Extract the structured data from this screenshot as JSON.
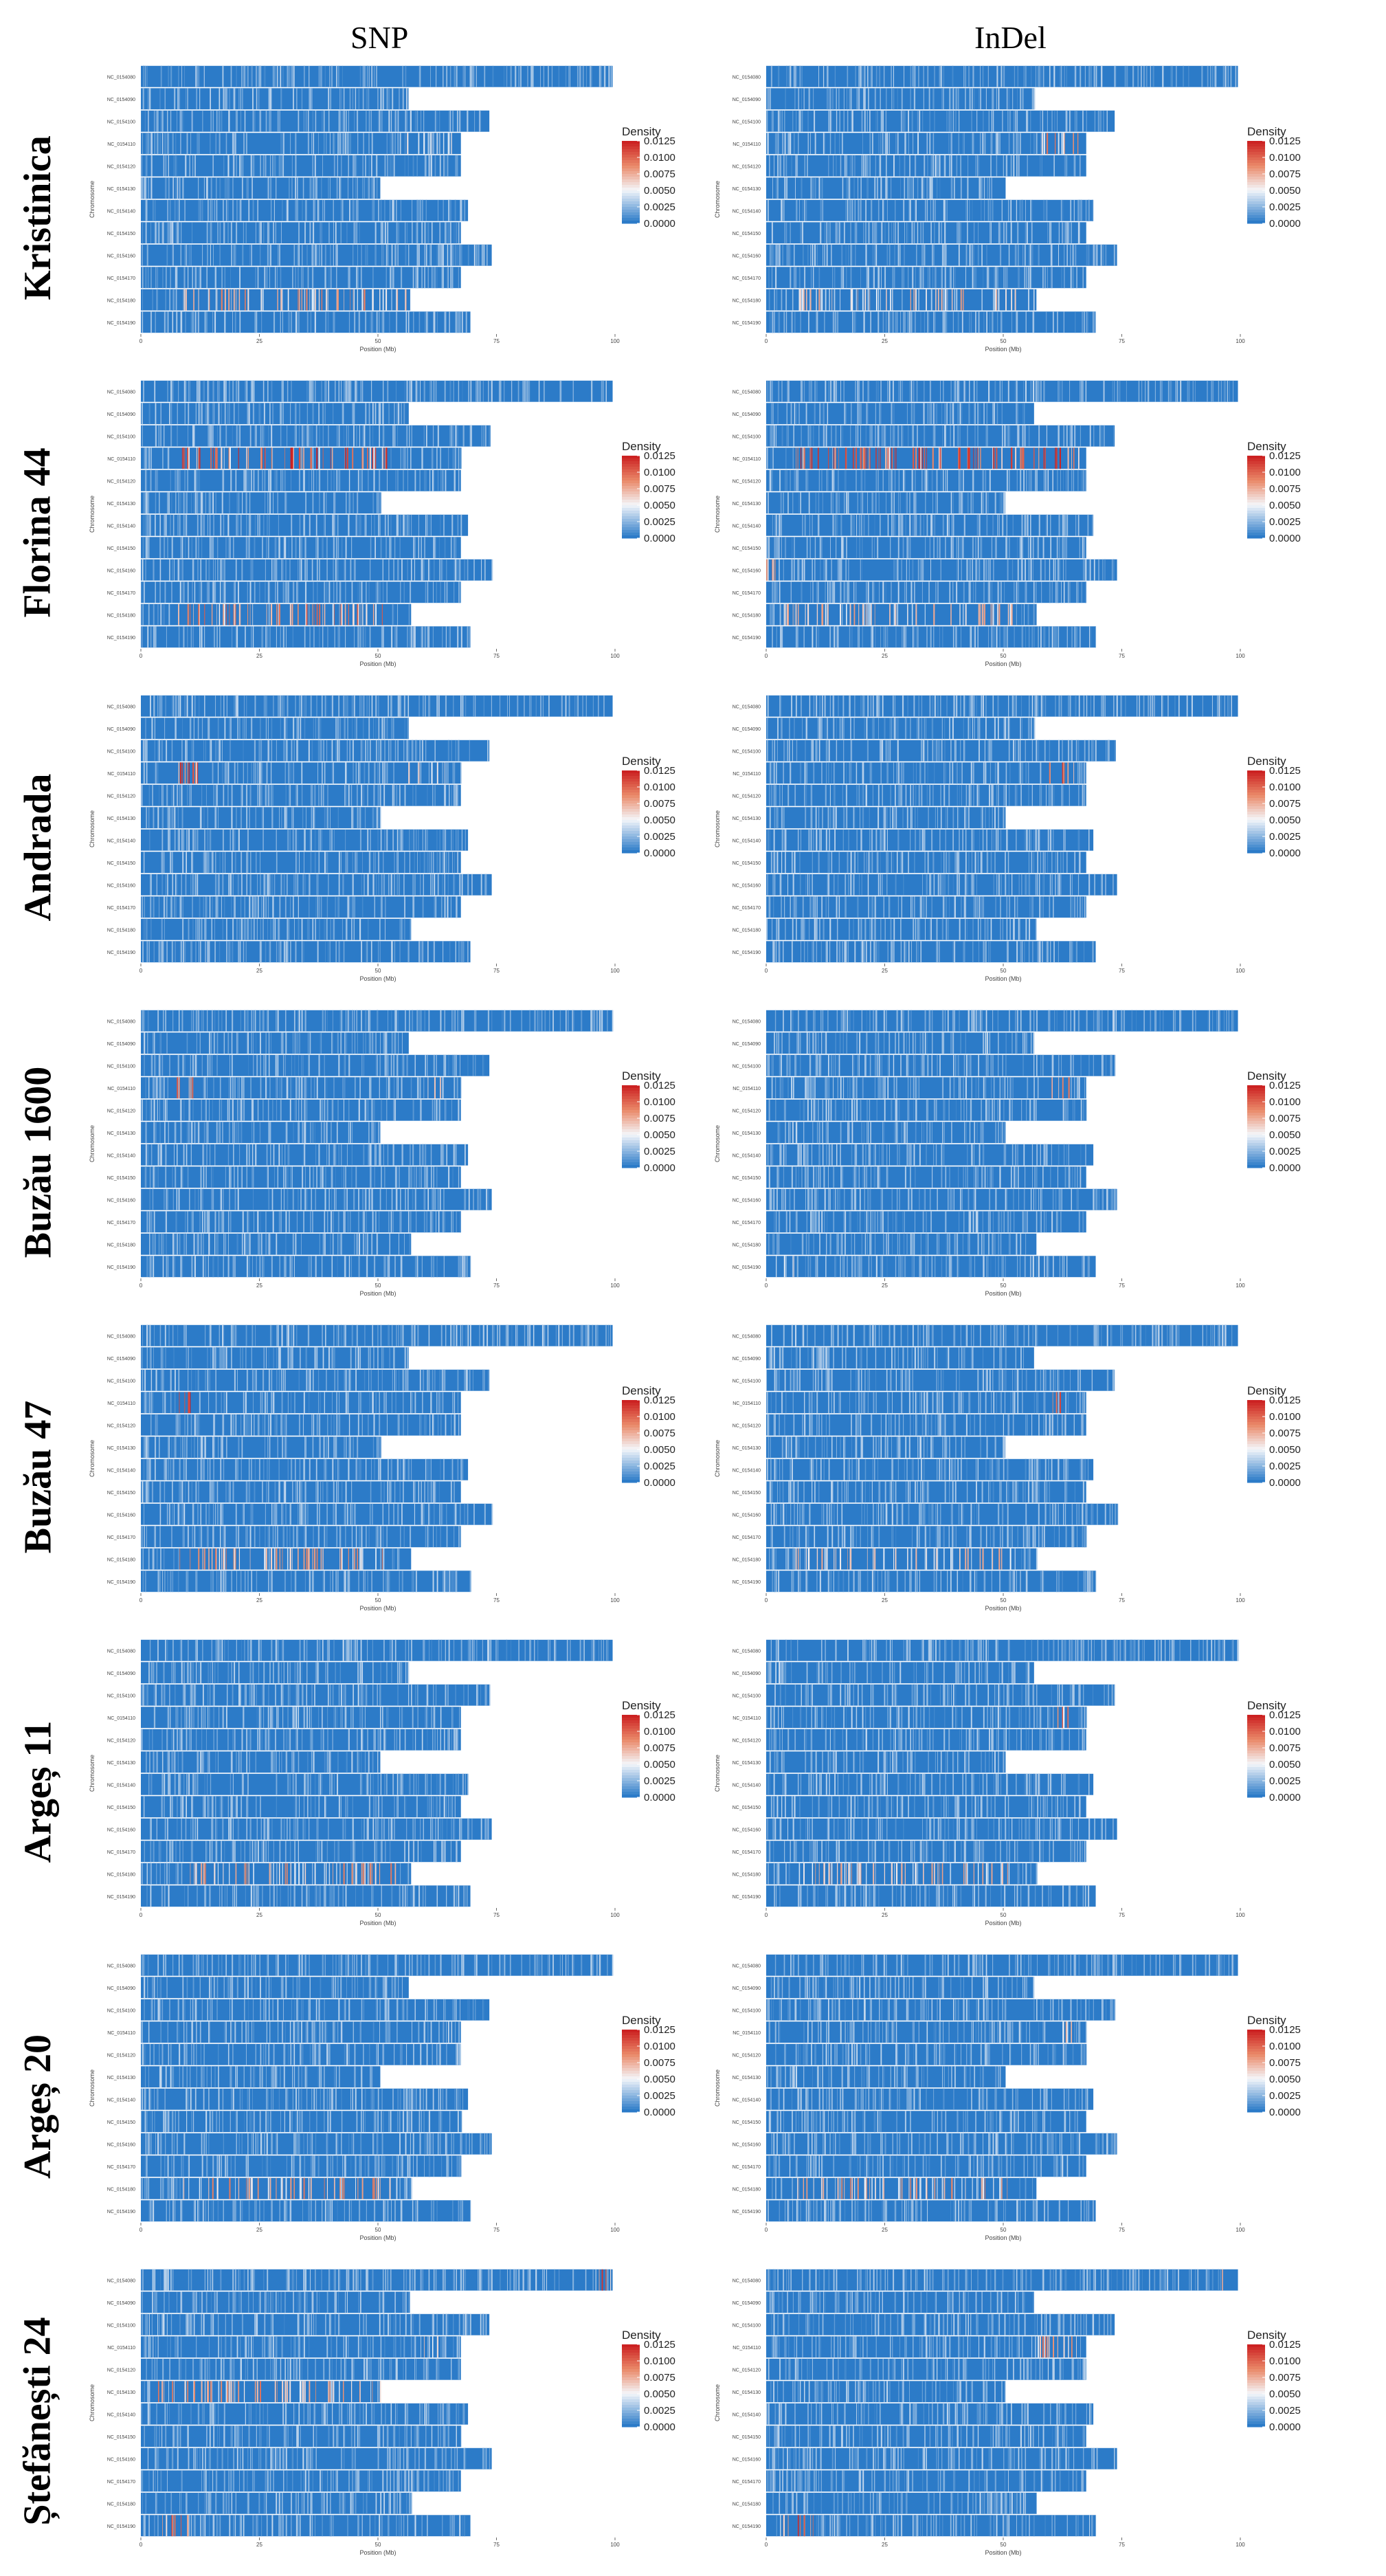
{
  "figure": {
    "column_headers": [
      "SNP",
      "InDel"
    ],
    "variety_labels": [
      "Kristinica",
      "Florina 44",
      "Andrada",
      "Buzău 1600",
      "Buzău 47",
      "Argeș 11",
      "Argeș 20",
      "Ștefănești 24"
    ]
  },
  "colors": {
    "low": "#2c7bc8",
    "mid": "#f4f6fa",
    "high": "#cc2222",
    "mid2": "#ea8a6a",
    "axis": "#444444"
  },
  "chart_data": {
    "type": "heatmap",
    "xlabel": "Position (Mb)",
    "ylabel": "Chromosome",
    "x_ticks": [
      "0",
      "25",
      "50",
      "75",
      "100"
    ],
    "xlim": [
      0,
      100
    ],
    "legend_title": "Density",
    "legend_ticks": [
      "0.0125",
      "0.0100",
      "0.0075",
      "0.0050",
      "0.0025",
      "0.0000"
    ],
    "color_range": [
      0,
      0.0125
    ],
    "chromosomes": [
      {
        "name": "NC_0154080",
        "length_mb": 99.5
      },
      {
        "name": "NC_0154090",
        "length_mb": 56.5
      },
      {
        "name": "NC_0154100",
        "length_mb": 73.5
      },
      {
        "name": "NC_0154110",
        "length_mb": 67.5
      },
      {
        "name": "NC_0154120",
        "length_mb": 67.5
      },
      {
        "name": "NC_0154130",
        "length_mb": 50.5
      },
      {
        "name": "NC_0154140",
        "length_mb": 69.0
      },
      {
        "name": "NC_0154150",
        "length_mb": 67.5
      },
      {
        "name": "NC_0154160",
        "length_mb": 74.0
      },
      {
        "name": "NC_0154170",
        "length_mb": 67.5
      },
      {
        "name": "NC_0154180",
        "length_mb": 57.0
      },
      {
        "name": "NC_0154190",
        "length_mb": 69.5
      }
    ],
    "panels": [
      {
        "variety": "Kristinica",
        "type": "SNP",
        "hotspots": [
          {
            "chr": 10,
            "from": 9,
            "to": 57,
            "level": 0.008
          },
          {
            "chr": 3,
            "from": 56,
            "to": 67,
            "level": 0.005
          }
        ]
      },
      {
        "variety": "Kristinica",
        "type": "InDel",
        "hotspots": [
          {
            "chr": 10,
            "from": 6,
            "to": 56,
            "level": 0.007
          },
          {
            "chr": 3,
            "from": 58,
            "to": 66,
            "level": 0.009
          }
        ]
      },
      {
        "variety": "Florina 44",
        "type": "SNP",
        "hotspots": [
          {
            "chr": 3,
            "from": 7,
            "to": 52,
            "level": 0.011
          },
          {
            "chr": 10,
            "from": 7,
            "to": 52,
            "level": 0.009
          }
        ]
      },
      {
        "variety": "Florina 44",
        "type": "InDel",
        "hotspots": [
          {
            "chr": 3,
            "from": 6,
            "to": 66,
            "level": 0.012
          },
          {
            "chr": 10,
            "from": 3,
            "to": 52,
            "level": 0.007
          },
          {
            "chr": 8,
            "from": 0,
            "to": 2,
            "level": 0.01
          }
        ]
      },
      {
        "variety": "Andrada",
        "type": "SNP",
        "hotspots": [
          {
            "chr": 3,
            "from": 7,
            "to": 12,
            "level": 0.012
          },
          {
            "chr": 3,
            "from": 56,
            "to": 64,
            "level": 0.006
          }
        ]
      },
      {
        "variety": "Andrada",
        "type": "InDel",
        "hotspots": [
          {
            "chr": 3,
            "from": 58,
            "to": 65,
            "level": 0.01
          },
          {
            "chr": 11,
            "from": 3,
            "to": 6,
            "level": 0.006
          }
        ]
      },
      {
        "variety": "Buzău 1600",
        "type": "SNP",
        "hotspots": [
          {
            "chr": 3,
            "from": 7,
            "to": 12,
            "level": 0.012
          },
          {
            "chr": 3,
            "from": 60,
            "to": 66,
            "level": 0.006
          }
        ]
      },
      {
        "variety": "Buzău 1600",
        "type": "InDel",
        "hotspots": [
          {
            "chr": 3,
            "from": 58,
            "to": 64,
            "level": 0.01
          },
          {
            "chr": 11,
            "from": 3,
            "to": 6,
            "level": 0.005
          }
        ]
      },
      {
        "variety": "Buzău 47",
        "type": "SNP",
        "hotspots": [
          {
            "chr": 3,
            "from": 8,
            "to": 12,
            "level": 0.011
          },
          {
            "chr": 10,
            "from": 8,
            "to": 52,
            "level": 0.008
          }
        ]
      },
      {
        "variety": "Buzău 47",
        "type": "InDel",
        "hotspots": [
          {
            "chr": 3,
            "from": 59,
            "to": 63,
            "level": 0.01
          },
          {
            "chr": 10,
            "from": 6,
            "to": 52,
            "level": 0.007
          }
        ]
      },
      {
        "variety": "Argeș 11",
        "type": "SNP",
        "hotspots": [
          {
            "chr": 10,
            "from": 9,
            "to": 54,
            "level": 0.008
          }
        ]
      },
      {
        "variety": "Argeș 11",
        "type": "InDel",
        "hotspots": [
          {
            "chr": 3,
            "from": 60,
            "to": 65,
            "level": 0.009
          },
          {
            "chr": 10,
            "from": 6,
            "to": 52,
            "level": 0.007
          }
        ]
      },
      {
        "variety": "Argeș 20",
        "type": "SNP",
        "hotspots": [
          {
            "chr": 10,
            "from": 9,
            "to": 54,
            "level": 0.008
          }
        ]
      },
      {
        "variety": "Argeș 20",
        "type": "InDel",
        "hotspots": [
          {
            "chr": 3,
            "from": 60,
            "to": 65,
            "level": 0.009
          },
          {
            "chr": 10,
            "from": 6,
            "to": 52,
            "level": 0.008
          }
        ]
      },
      {
        "variety": "Ștefănești 24",
        "type": "SNP",
        "hotspots": [
          {
            "chr": 5,
            "from": 3,
            "to": 51,
            "level": 0.008
          },
          {
            "chr": 11,
            "from": 4,
            "to": 10,
            "level": 0.012
          },
          {
            "chr": 0,
            "from": 96,
            "to": 99,
            "level": 0.01
          },
          {
            "chr": 3,
            "from": 58,
            "to": 63,
            "level": 0.007
          }
        ]
      },
      {
        "variety": "Ștefănești 24",
        "type": "InDel",
        "hotspots": [
          {
            "chr": 11,
            "from": 3,
            "to": 10,
            "level": 0.012
          },
          {
            "chr": 3,
            "from": 57,
            "to": 66,
            "level": 0.009
          },
          {
            "chr": 0,
            "from": 96,
            "to": 99,
            "level": 0.01
          }
        ]
      }
    ]
  }
}
